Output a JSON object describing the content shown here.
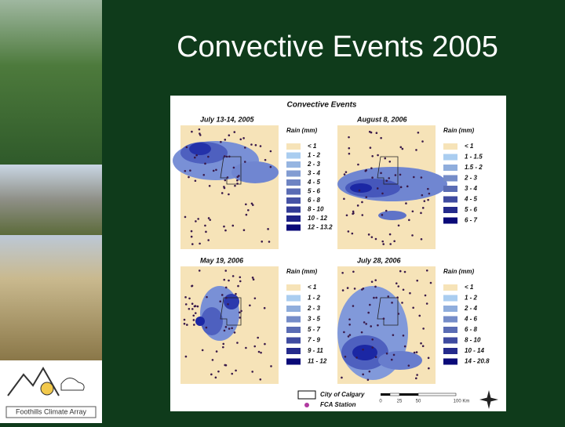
{
  "title": "Convective Events 2005",
  "figure": {
    "title": "Convective Events",
    "panels": [
      {
        "date": "July 13-14, 2005",
        "legend_title": "Rain (mm)",
        "legend": [
          "< 1",
          "1 - 2",
          "2 - 3",
          "3 - 4",
          "4 - 5",
          "5 - 6",
          "6 - 8",
          "8 - 10",
          "10 - 12",
          "12 - 13.2"
        ]
      },
      {
        "date": "August 8, 2006",
        "legend_title": "Rain (mm)",
        "legend": [
          "< 1",
          "1 - 1.5",
          "1.5 - 2",
          "2 - 3",
          "3 - 4",
          "4 - 5",
          "5 - 6",
          "6 - 7"
        ]
      },
      {
        "date": "May 19, 2006",
        "legend_title": "Rain (mm)",
        "legend": [
          "< 1",
          "1 - 2",
          "2 - 3",
          "3 - 5",
          "5 - 7",
          "7 - 9",
          "9 - 11",
          "11 - 12"
        ]
      },
      {
        "date": "July 28, 2006",
        "legend_title": "Rain (mm)",
        "legend": [
          "< 1",
          "1 - 2",
          "2 - 4",
          "4 - 6",
          "6 - 8",
          "8 - 10",
          "10 - 14",
          "14 - 20.8"
        ]
      }
    ],
    "key": {
      "city": "City of Calgary",
      "station": "FCA Station"
    },
    "scale": [
      "0",
      "25",
      "50",
      "100 Km"
    ]
  },
  "logo": "Foothills Climate Array"
}
